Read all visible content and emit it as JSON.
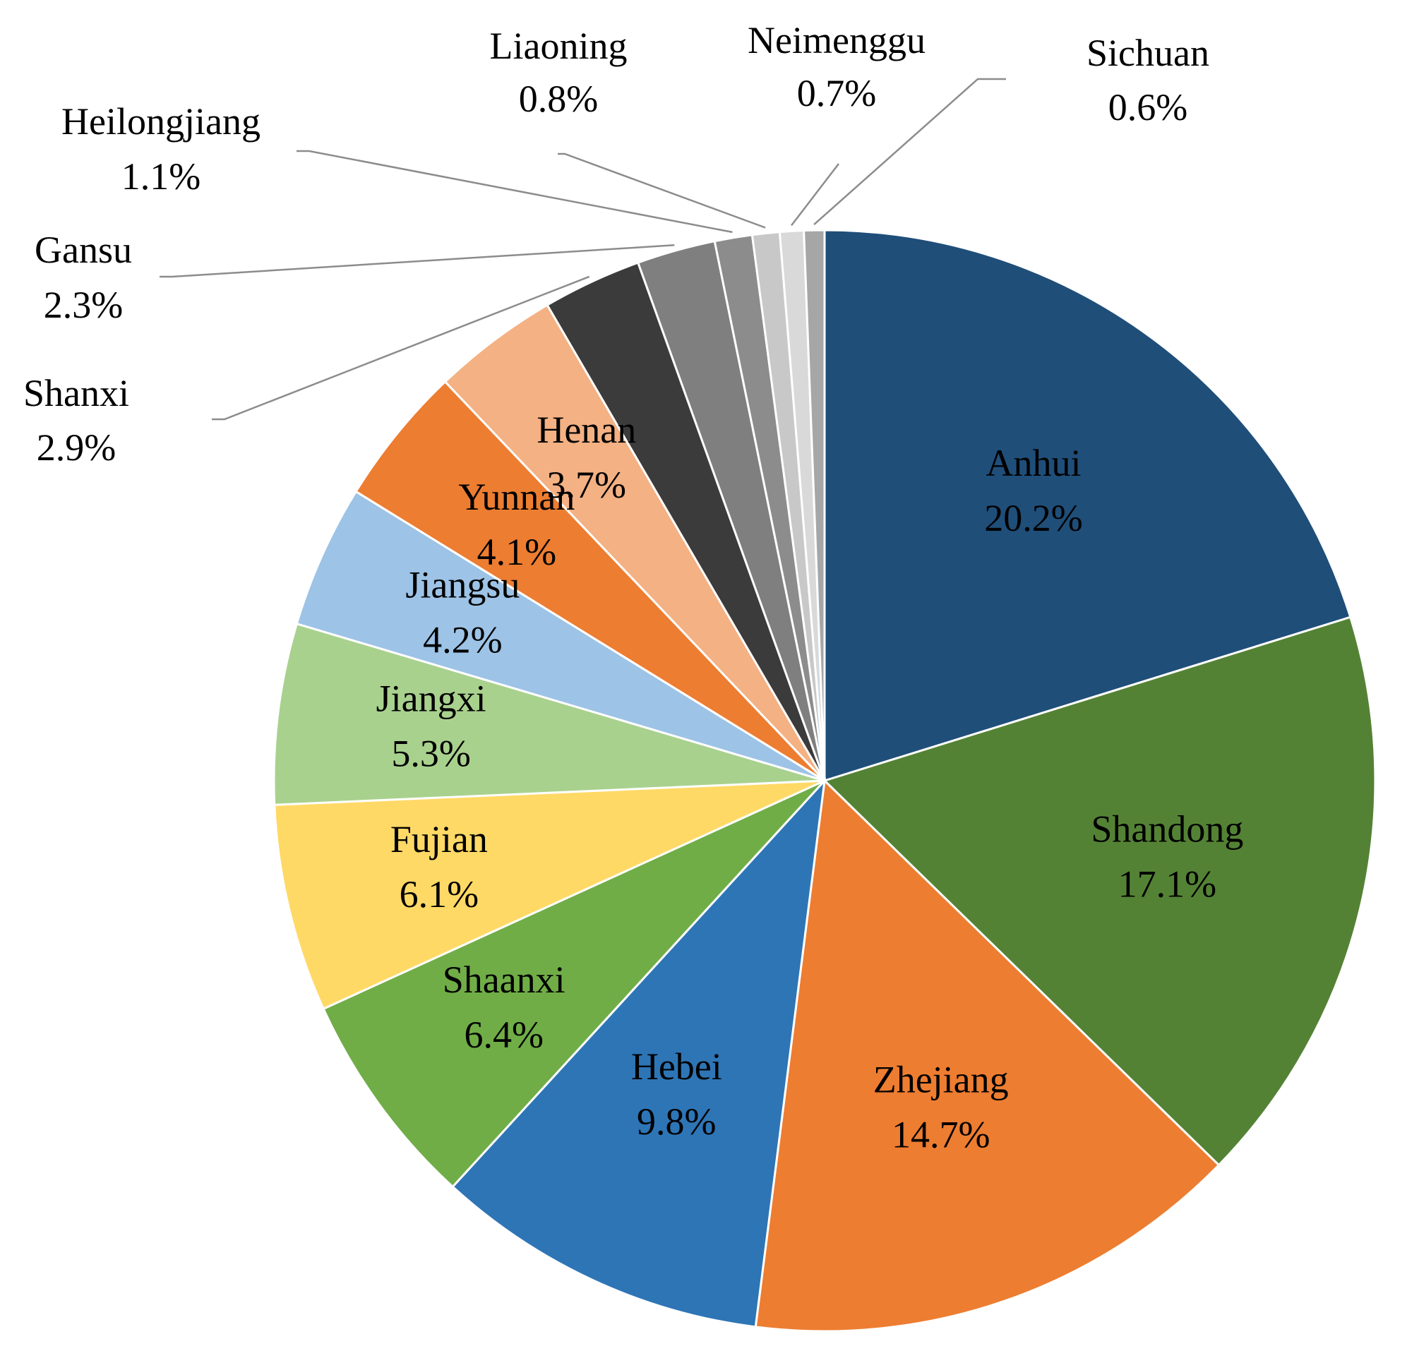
{
  "chart_data": {
    "type": "pie",
    "title": "",
    "slices": [
      {
        "label": "Anhui",
        "value": 20.2,
        "display": "20.2%",
        "color": "#1f4e79",
        "placement": "inside"
      },
      {
        "label": "Shandong",
        "value": 17.1,
        "display": "17.1%",
        "color": "#548235",
        "placement": "inside"
      },
      {
        "label": "Zhejiang",
        "value": 14.7,
        "display": "14.7%",
        "color": "#ed7d31",
        "placement": "inside"
      },
      {
        "label": "Hebei",
        "value": 9.8,
        "display": "9.8%",
        "color": "#2e75b6",
        "placement": "inside"
      },
      {
        "label": "Shaanxi",
        "value": 6.4,
        "display": "6.4%",
        "color": "#70ad47",
        "placement": "inside"
      },
      {
        "label": "Fujian",
        "value": 6.1,
        "display": "6.1%",
        "color": "#ffd966",
        "placement": "inside"
      },
      {
        "label": "Jiangxi",
        "value": 5.3,
        "display": "5.3%",
        "color": "#a9d18e",
        "placement": "inside"
      },
      {
        "label": "Jiangsu",
        "value": 4.2,
        "display": "4.2%",
        "color": "#9dc3e6",
        "placement": "inside"
      },
      {
        "label": "Yunnan",
        "value": 4.1,
        "display": "4.1%",
        "color": "#ed7d31",
        "placement": "inside"
      },
      {
        "label": "Henan",
        "value": 3.7,
        "display": "3.7%",
        "color": "#f4b183",
        "placement": "inside"
      },
      {
        "label": "Shanxi",
        "value": 2.9,
        "display": "2.9%",
        "color": "#3b3b3b",
        "placement": "outside"
      },
      {
        "label": "Gansu",
        "value": 2.3,
        "display": "2.3%",
        "color": "#7f7f7f",
        "placement": "outside"
      },
      {
        "label": "Heilongjiang",
        "value": 1.1,
        "display": "1.1%",
        "color": "#8c8c8c",
        "placement": "outside"
      },
      {
        "label": "Liaoning",
        "value": 0.8,
        "display": "0.8%",
        "color": "#c8c8c8",
        "placement": "outside"
      },
      {
        "label": "Neimenggu",
        "value": 0.7,
        "display": "0.7%",
        "color": "#d9d9d9",
        "placement": "outside"
      },
      {
        "label": "Sichuan",
        "value": 0.6,
        "display": "0.6%",
        "color": "#a6a6a6",
        "placement": "outside"
      }
    ],
    "start_angle": "12 o'clock",
    "direction": "clockwise",
    "legend": "none",
    "data_labels": "category name and percentage"
  }
}
